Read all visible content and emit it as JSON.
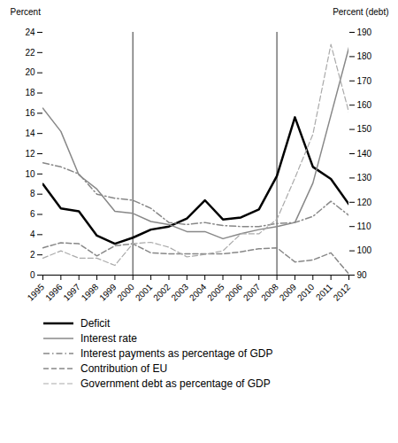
{
  "chart_data": {
    "type": "line",
    "x": [
      1995,
      1996,
      1997,
      1998,
      1999,
      2000,
      2001,
      2002,
      2003,
      2004,
      2005,
      2006,
      2007,
      2008,
      2009,
      2010,
      2011,
      2012
    ],
    "xlim": [
      1995,
      2012
    ],
    "xticks": [
      1995,
      1996,
      1997,
      1998,
      1999,
      2000,
      2001,
      2002,
      2003,
      2004,
      2005,
      2006,
      2007,
      2008,
      2009,
      2010,
      2011,
      2012
    ],
    "ylabel": "Percent",
    "y2label": "Percent (debt)",
    "ylim": [
      0,
      24
    ],
    "yticks": [
      0,
      2,
      4,
      6,
      8,
      10,
      12,
      14,
      16,
      18,
      20,
      22,
      24
    ],
    "y2lim": [
      90,
      190
    ],
    "y2ticks": [
      90,
      100,
      110,
      120,
      130,
      140,
      150,
      160,
      170,
      180,
      190
    ],
    "vlines": [
      2000,
      2008
    ],
    "legend": "bottom",
    "series": [
      {
        "name": "Deficit",
        "color": "black",
        "line_style": "solid",
        "values": [
          9.0,
          6.6,
          6.3,
          3.9,
          3.1,
          3.7,
          4.5,
          4.8,
          5.6,
          7.4,
          5.5,
          5.7,
          6.5,
          9.8,
          15.6,
          10.7,
          9.5,
          7.0
        ]
      },
      {
        "name": "Interest rate",
        "color": "#888888",
        "line_style": "solid",
        "values": [
          16.5,
          14.2,
          9.9,
          8.5,
          6.3,
          6.1,
          5.3,
          5.0,
          4.3,
          4.3,
          3.6,
          4.1,
          4.5,
          4.8,
          5.2,
          9.1,
          15.8,
          22.5
        ]
      },
      {
        "name": "Interest payments as percentage of GDP",
        "color": "#888888",
        "line_style": "dashdot",
        "values": [
          11.1,
          10.7,
          10.0,
          8.0,
          7.6,
          7.4,
          6.6,
          5.2,
          5.0,
          5.2,
          4.9,
          4.8,
          4.8,
          5.1,
          5.2,
          5.8,
          7.3,
          5.9
        ]
      },
      {
        "name": "Contribution of EU",
        "color": "#888888",
        "line_style": "dashed",
        "values": [
          2.7,
          3.2,
          3.1,
          1.9,
          2.9,
          3.1,
          2.2,
          2.1,
          2.1,
          2.1,
          2.1,
          2.3,
          2.6,
          2.7,
          1.3,
          1.5,
          2.2,
          0.1
        ]
      },
      {
        "name": "Government debt as percentage of GDP",
        "color": "#aaaaaa",
        "line_style": "dashed",
        "axis": "y2",
        "values": [
          97.0,
          100.0,
          97.0,
          97.0,
          94.0,
          103.0,
          103.5,
          101.5,
          97.5,
          98.5,
          100.0,
          107.0,
          107.0,
          113.0,
          130.0,
          148.0,
          185.0,
          157.0
        ]
      }
    ]
  }
}
